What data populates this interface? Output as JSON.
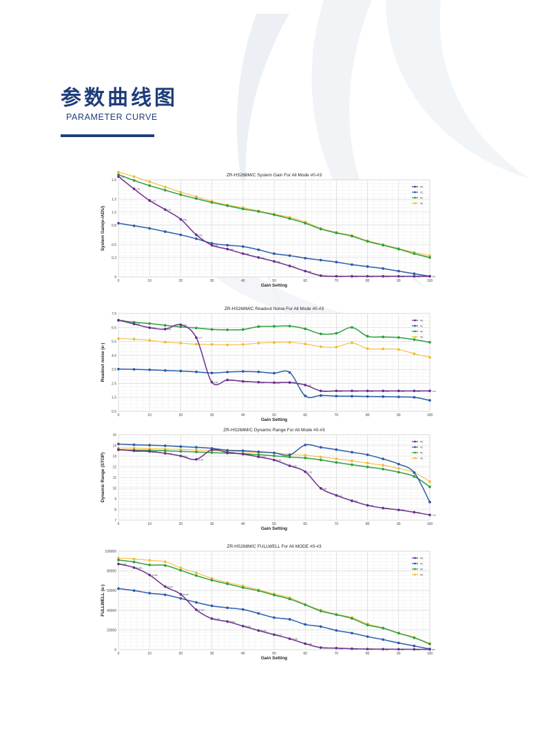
{
  "header": {
    "title_cn": "参数曲线图",
    "title_en": "PARAMETER CURVE"
  },
  "colors": {
    "brand": "#1f3d7a",
    "series": [
      "#6b2d8f",
      "#2a5caa",
      "#2f9e3f",
      "#f2bb2c"
    ]
  },
  "chart_data": [
    {
      "type": "line",
      "title": "ZR-HS268M/C System Gain For All Mode #0-#3",
      "xlabel": "Gain Setting",
      "ylabel": "System Gain(e-/ADU)",
      "xlim": [
        0,
        100
      ],
      "ylim": [
        0,
        1.5
      ],
      "x_ticks": [
        0,
        10,
        20,
        30,
        40,
        50,
        60,
        70,
        80,
        90,
        100
      ],
      "y_ticks": [
        0,
        0.3,
        0.5,
        0.8,
        1.0,
        1.2,
        1.5
      ],
      "y_tick_labels": [
        "0",
        "0.3",
        "0.5",
        "0.8",
        "1.0",
        "1.2",
        "1.5"
      ],
      "x": [
        0,
        5,
        10,
        15,
        20,
        25,
        30,
        35,
        40,
        45,
        50,
        55,
        60,
        65,
        70,
        75,
        80,
        85,
        90,
        95,
        100
      ],
      "legend": [
        "#0",
        "#1",
        "#2",
        "#3"
      ],
      "series": [
        {
          "name": "#0",
          "values": [
            1.55,
            1.36,
            1.18,
            1.04,
            0.89,
            0.65,
            0.49,
            0.43,
            0.36,
            0.3,
            0.24,
            0.17,
            0.09,
            0.02,
            0.01,
            0.01,
            0.01,
            0.01,
            0.01,
            0.01,
            0.01
          ],
          "labels": [
            "1.55",
            "1.36",
            "1.18",
            "1.04",
            "0.89",
            "0.65",
            "0.49",
            "0.43",
            "0.36",
            "0.30",
            "0.24",
            "0.17",
            "0.09",
            "0.02",
            "0.01",
            "0.01",
            "0.01",
            "0.01",
            "0.01",
            "0.01",
            "0.01"
          ]
        },
        {
          "name": "#1",
          "values": [
            0.83,
            0.79,
            0.75,
            0.7,
            0.65,
            0.59,
            0.52,
            0.49,
            0.47,
            0.42,
            0.36,
            0.33,
            0.29,
            0.26,
            0.23,
            0.19,
            0.16,
            0.13,
            0.09,
            0.05,
            0.01
          ]
        },
        {
          "name": "#2",
          "values": [
            1.58,
            1.49,
            1.41,
            1.34,
            1.27,
            1.21,
            1.15,
            1.1,
            1.05,
            1.01,
            0.96,
            0.9,
            0.83,
            0.74,
            0.68,
            0.63,
            0.55,
            0.49,
            0.43,
            0.36,
            0.3
          ]
        },
        {
          "name": "#3",
          "values": [
            1.62,
            1.55,
            1.47,
            1.39,
            1.31,
            1.24,
            1.17,
            1.11,
            1.07,
            1.02,
            0.97,
            0.92,
            0.85,
            0.75,
            0.69,
            0.64,
            0.56,
            0.5,
            0.44,
            0.38,
            0.33
          ]
        }
      ]
    },
    {
      "type": "line",
      "title": "ZR-HS268M/C Readout Noise For All Mode #0-#3",
      "xlabel": "Gain Setting",
      "ylabel": "Readout noise (e-)",
      "xlim": [
        0,
        100
      ],
      "ylim": [
        0.5,
        7.5
      ],
      "x_ticks": [
        0,
        10,
        20,
        30,
        40,
        50,
        60,
        70,
        80,
        90,
        100
      ],
      "y_ticks": [
        0.5,
        1.5,
        2.5,
        3.5,
        4.5,
        5.5,
        6.5,
        7.5
      ],
      "y_tick_labels": [
        "0.5",
        "1.5",
        "2.5",
        "3.5",
        "4.5",
        "5.5",
        "6.5",
        "7.5"
      ],
      "x": [
        0,
        5,
        10,
        15,
        20,
        25,
        30,
        35,
        40,
        45,
        50,
        55,
        60,
        65,
        70,
        75,
        80,
        85,
        90,
        95,
        100
      ],
      "legend": [
        "#0",
        "#1",
        "#2",
        "#3"
      ],
      "series": [
        {
          "name": "#0",
          "values": [
            7.02,
            6.75,
            6.48,
            6.38,
            6.69,
            5.77,
            2.59,
            2.74,
            2.64,
            2.58,
            2.55,
            2.56,
            2.38,
            1.96,
            1.96,
            1.96,
            1.96,
            1.96,
            1.96,
            1.96,
            1.96
          ],
          "labels": [
            "7.02",
            "6.75",
            "6.48",
            "6.38",
            "6.69",
            "5.77",
            "2.59",
            "2.74",
            "2.64",
            "2.58",
            "2.55",
            "2.56",
            "2.38",
            "1.96",
            "1.96",
            "1.96",
            "1.96",
            "1.96",
            "1.96",
            "1.96",
            "1.96"
          ]
        },
        {
          "name": "#1",
          "values": [
            3.52,
            3.5,
            3.47,
            3.42,
            3.38,
            3.32,
            3.24,
            3.31,
            3.35,
            3.32,
            3.23,
            3.28,
            1.6,
            1.63,
            1.59,
            1.58,
            1.56,
            1.55,
            1.53,
            1.5,
            1.28
          ]
        },
        {
          "name": "#2",
          "values": [
            7.0,
            6.87,
            6.78,
            6.65,
            6.54,
            6.46,
            6.36,
            6.33,
            6.35,
            6.56,
            6.58,
            6.6,
            6.4,
            6.04,
            6.08,
            6.5,
            5.87,
            5.82,
            5.78,
            5.63,
            5.44
          ]
        },
        {
          "name": "#3",
          "values": [
            5.7,
            5.66,
            5.58,
            5.45,
            5.38,
            5.3,
            5.28,
            5.25,
            5.28,
            5.38,
            5.42,
            5.43,
            5.32,
            5.12,
            5.1,
            5.4,
            4.98,
            4.96,
            4.92,
            4.62,
            4.36
          ]
        }
      ]
    },
    {
      "type": "line",
      "title": "ZR-HS268M/C Dynamic Range For All Mode #0-#3",
      "xlabel": "Gain Setting",
      "ylabel": "Dynamic Range (STOP)",
      "xlim": [
        0,
        100
      ],
      "ylim": [
        7,
        15
      ],
      "x_ticks": [
        0,
        10,
        20,
        30,
        40,
        50,
        60,
        70,
        80,
        90,
        100
      ],
      "y_ticks": [
        7,
        8,
        9,
        10,
        11,
        12,
        13,
        14,
        15
      ],
      "y_tick_labels": [
        "7",
        "8",
        "9",
        "10",
        "11",
        "12",
        "13",
        "14",
        "15"
      ],
      "x": [
        0,
        5,
        10,
        15,
        20,
        25,
        30,
        35,
        40,
        45,
        50,
        55,
        60,
        65,
        70,
        75,
        80,
        85,
        90,
        95,
        100
      ],
      "legend": [
        "#0",
        "#1",
        "#2",
        "#3"
      ],
      "series": [
        {
          "name": "#0",
          "values": [
            13.61,
            13.49,
            13.43,
            13.26,
            13.01,
            12.69,
            13.59,
            13.34,
            13.18,
            12.93,
            12.63,
            12.09,
            11.53,
            9.98,
            9.32,
            8.81,
            8.39,
            8.13,
            7.96,
            7.74,
            7.49
          ],
          "labels": [
            "13.61",
            "13.49",
            "13.43",
            "13.26",
            "13.01",
            "12.69",
            "13.59",
            "13.34",
            "13.18",
            "12.93",
            "12.63",
            "12.09",
            "11.53",
            "9.98",
            "9.32",
            "8.81",
            "8.39",
            "8.13",
            "7.96",
            "7.74",
            "7.49"
          ]
        },
        {
          "name": "#1",
          "values": [
            14.13,
            14.06,
            14.02,
            13.97,
            13.89,
            13.82,
            13.72,
            13.55,
            13.5,
            13.4,
            13.3,
            13.1,
            14.04,
            13.82,
            13.6,
            13.36,
            13.12,
            12.73,
            12.25,
            11.45,
            8.69
          ]
        },
        {
          "name": "#2",
          "values": [
            13.58,
            13.56,
            13.54,
            13.5,
            13.44,
            13.39,
            13.32,
            13.27,
            13.22,
            13.13,
            13.02,
            12.91,
            12.82,
            12.64,
            12.4,
            12.19,
            11.98,
            11.78,
            11.49,
            11.09,
            10.12
          ]
        },
        {
          "name": "#3",
          "values": [
            13.75,
            13.74,
            13.7,
            13.66,
            13.63,
            13.57,
            13.52,
            13.47,
            13.41,
            13.34,
            13.28,
            13.17,
            13.07,
            12.92,
            12.75,
            12.56,
            12.34,
            12.14,
            11.84,
            11.48,
            10.61
          ]
        }
      ]
    },
    {
      "type": "line",
      "title": "ZR-HS268M/C FULLWELL For All MODE #0-#3",
      "xlabel": "Gain Setting",
      "ylabel": "FULLWELL (e-)",
      "xlim": [
        0,
        100
      ],
      "ylim": [
        0,
        100000
      ],
      "x_ticks": [
        0,
        10,
        20,
        30,
        40,
        50,
        60,
        70,
        80,
        90,
        100
      ],
      "y_ticks": [
        0,
        20000,
        40000,
        60000,
        80000,
        100000
      ],
      "y_tick_labels": [
        "0",
        "20000",
        "40000",
        "60000",
        "80000",
        "100000"
      ],
      "x": [
        0,
        5,
        10,
        15,
        20,
        25,
        30,
        35,
        40,
        45,
        50,
        55,
        60,
        65,
        70,
        75,
        80,
        85,
        90,
        95,
        100
      ],
      "legend": [
        "#0",
        "#1",
        "#2",
        "#3"
      ],
      "series": [
        {
          "name": "#0",
          "values": [
            87000,
            83290,
            75782,
            64057,
            56210,
            40483,
            31495,
            28601,
            23951,
            19421,
            15217,
            11098,
            6060,
            2063,
            1553,
            969,
            630,
            516,
            401,
            325,
            250
          ],
          "labels": [
            "87,000",
            "83,290",
            "75,782",
            "64,057",
            "56,210",
            "40,483",
            "31,495",
            "28,601",
            "23,951",
            "19,421",
            "15,217",
            "11,098",
            "6,060",
            "2,063",
            "1,553",
            "969",
            "630",
            "516",
            "401",
            "325",
            "250"
          ]
        },
        {
          "name": "#1",
          "values": [
            62000,
            60000,
            57300,
            55700,
            52000,
            48000,
            44500,
            42500,
            40800,
            36800,
            32500,
            30800,
            25600,
            23400,
            19500,
            16800,
            13300,
            10200,
            6800,
            3800,
            700
          ]
        },
        {
          "name": "#2",
          "values": [
            91000,
            89000,
            86000,
            85500,
            80500,
            75200,
            70500,
            66800,
            63000,
            59800,
            55400,
            51400,
            45500,
            39200,
            35500,
            31700,
            25000,
            21800,
            16700,
            12000,
            5800
          ]
        },
        {
          "name": "#3",
          "values": [
            93000,
            92000,
            90700,
            89200,
            83000,
            78000,
            72400,
            68100,
            64800,
            60800,
            56600,
            52700,
            46000,
            40200,
            35900,
            32600,
            26300,
            22000,
            17000,
            12500,
            6200
          ]
        }
      ]
    }
  ]
}
